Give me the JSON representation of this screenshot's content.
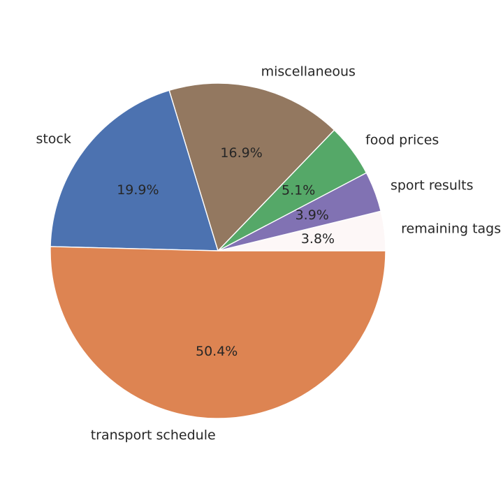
{
  "chart_data": {
    "type": "pie",
    "categories": [
      "remaining tags",
      "sport results",
      "food prices",
      "miscellaneous",
      "stock",
      "transport schedule"
    ],
    "values": [
      3.8,
      3.9,
      5.1,
      16.9,
      19.9,
      50.4
    ],
    "percent_labels": [
      "3.8%",
      "3.9%",
      "5.1%",
      "16.9%",
      "19.9%",
      "50.4%"
    ],
    "colors": [
      "#fdf7f7",
      "#8172b3",
      "#55a868",
      "#937860",
      "#4c72b0",
      "#dd8452"
    ],
    "start_angle_deg": 0,
    "direction": "counterclockwise"
  }
}
